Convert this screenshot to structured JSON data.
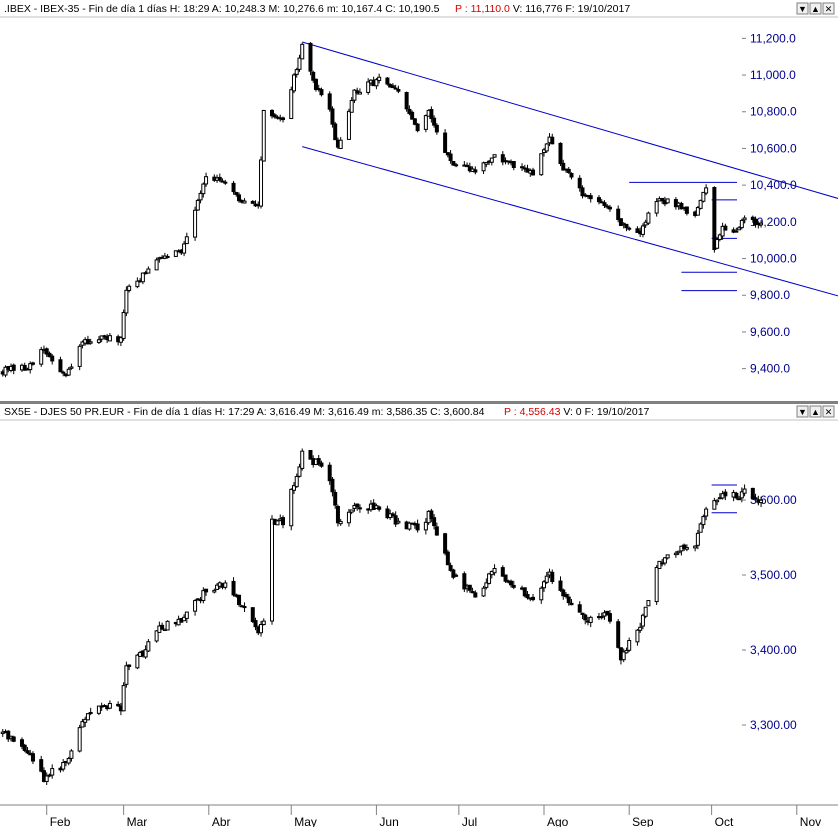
{
  "window_buttons": [
    "▼",
    "▲",
    "✕"
  ],
  "colors": {
    "candle": "#000000",
    "trendline": "#0000cc",
    "axis_label": "#00008b",
    "highlight": "#d00000",
    "background": "#ffffff"
  },
  "x_axis": {
    "labels": [
      "Feb",
      "Mar",
      "Abr",
      "May",
      "Jun",
      "Jul",
      "Ago",
      "Sep",
      "Oct",
      "Nov"
    ],
    "range": [
      "2017-01-15",
      "2017-11-16"
    ]
  },
  "chart_data": [
    {
      "type": "candlestick",
      "header": {
        "name": ".IBEX - IBEX-35 - Fin de día 1 días",
        "high": "H: 18:29",
        "open": "A: 10,248.3",
        "max": "M: 10,276.6",
        "min": "m: 10,167.4",
        "close": "C: 10,190.5",
        "p": "P : 11,110.0",
        "volume": "V: 116,776",
        "date": "F: 19/10/2017"
      },
      "ylim": [
        9240,
        11300
      ],
      "y_ticks": [
        9400,
        9600,
        9800,
        10000,
        10200,
        10400,
        10600,
        10800,
        11000,
        11200
      ],
      "y_tick_labels": [
        "9,400.0",
        "9,600.0",
        "9,800.0",
        "10,000.0",
        "10,200.0",
        "10,400.0",
        "10,600.0",
        "10,800.0",
        "11,000.0",
        "11,200.0"
      ],
      "anchors": [
        [
          "2017-01-16",
          9390
        ],
        [
          "2017-01-24",
          9400
        ],
        [
          "2017-01-31",
          9500
        ],
        [
          "2017-02-08",
          9350
        ],
        [
          "2017-02-14",
          9540
        ],
        [
          "2017-02-20",
          9570
        ],
        [
          "2017-02-28",
          9550
        ],
        [
          "2017-03-02",
          9830
        ],
        [
          "2017-03-09",
          9920
        ],
        [
          "2017-03-14",
          10020
        ],
        [
          "2017-03-22",
          10040
        ],
        [
          "2017-03-31",
          10460
        ],
        [
          "2017-04-07",
          10400
        ],
        [
          "2017-04-13",
          10300
        ],
        [
          "2017-04-19",
          10300
        ],
        [
          "2017-04-21",
          10790
        ],
        [
          "2017-04-28",
          10770
        ],
        [
          "2017-05-05",
          11150
        ],
        [
          "2017-05-10",
          10930
        ],
        [
          "2017-05-15",
          10800
        ],
        [
          "2017-05-18",
          10600
        ],
        [
          "2017-05-24",
          10900
        ],
        [
          "2017-06-02",
          10980
        ],
        [
          "2017-06-09",
          10900
        ],
        [
          "2017-06-16",
          10700
        ],
        [
          "2017-06-20",
          10790
        ],
        [
          "2017-06-29",
          10500
        ],
        [
          "2017-07-07",
          10480
        ],
        [
          "2017-07-14",
          10560
        ],
        [
          "2017-07-21",
          10500
        ],
        [
          "2017-07-28",
          10460
        ],
        [
          "2017-08-03",
          10650
        ],
        [
          "2017-08-08",
          10500
        ],
        [
          "2017-08-16",
          10330
        ],
        [
          "2017-08-24",
          10300
        ],
        [
          "2017-08-29",
          10190
        ],
        [
          "2017-09-05",
          10140
        ],
        [
          "2017-09-11",
          10320
        ],
        [
          "2017-09-18",
          10300
        ],
        [
          "2017-09-25",
          10240
        ],
        [
          "2017-09-29",
          10380
        ],
        [
          "2017-10-02",
          10050
        ],
        [
          "2017-10-05",
          10180
        ],
        [
          "2017-10-10",
          10150
        ],
        [
          "2017-10-13",
          10230
        ],
        [
          "2017-10-19",
          10190
        ]
      ],
      "trendlines": [
        {
          "x1": "2017-05-05",
          "y1": 11180,
          "x2": "2017-11-20",
          "y2": 10310
        },
        {
          "x1": "2017-05-05",
          "y1": 10610,
          "x2": "2017-11-20",
          "y2": 9780
        }
      ],
      "hlines": [
        {
          "x1": "2017-09-01",
          "x2": "2017-11-20",
          "y": 10415
        },
        {
          "x1": "2017-10-01",
          "x2": "2017-11-20",
          "y": 10320
        },
        {
          "x1": "2017-10-01",
          "x2": "2017-11-20",
          "y": 10110
        },
        {
          "x1": "2017-09-20",
          "x2": "2017-11-20",
          "y": 9925
        },
        {
          "x1": "2017-09-20",
          "x2": "2017-11-20",
          "y": 9825
        }
      ]
    },
    {
      "type": "candlestick",
      "header": {
        "name": "SX5E - DJES 50 PR.EUR - Fin de día 1 días",
        "high": "H: 17:29",
        "open": "A: 3,616.49",
        "max": "M: 3,616.49",
        "min": "m: 3,586.35",
        "close": "C: 3,600.84",
        "p": "P : 4,556.43",
        "volume": "V: 0",
        "date": "F: 19/10/2017"
      },
      "ylim": [
        3200,
        3700
      ],
      "y_ticks": [
        3300,
        3400,
        3500,
        3600
      ],
      "y_tick_labels": [
        "3,300.00",
        "3,400.00",
        "3,500.00",
        "3,600.00"
      ],
      "anchors": [
        [
          "2017-01-16",
          3290
        ],
        [
          "2017-01-24",
          3270
        ],
        [
          "2017-01-31",
          3230
        ],
        [
          "2017-02-08",
          3250
        ],
        [
          "2017-02-14",
          3300
        ],
        [
          "2017-02-20",
          3330
        ],
        [
          "2017-02-28",
          3320
        ],
        [
          "2017-03-02",
          3380
        ],
        [
          "2017-03-09",
          3400
        ],
        [
          "2017-03-14",
          3430
        ],
        [
          "2017-03-22",
          3440
        ],
        [
          "2017-03-31",
          3480
        ],
        [
          "2017-04-07",
          3490
        ],
        [
          "2017-04-13",
          3460
        ],
        [
          "2017-04-19",
          3420
        ],
        [
          "2017-04-21",
          3440
        ],
        [
          "2017-04-24",
          3570
        ],
        [
          "2017-04-28",
          3570
        ],
        [
          "2017-05-05",
          3660
        ],
        [
          "2017-05-10",
          3650
        ],
        [
          "2017-05-15",
          3630
        ],
        [
          "2017-05-18",
          3570
        ],
        [
          "2017-05-24",
          3590
        ],
        [
          "2017-06-02",
          3590
        ],
        [
          "2017-06-09",
          3570
        ],
        [
          "2017-06-16",
          3560
        ],
        [
          "2017-06-20",
          3580
        ],
        [
          "2017-06-29",
          3500
        ],
        [
          "2017-07-07",
          3470
        ],
        [
          "2017-07-14",
          3510
        ],
        [
          "2017-07-21",
          3480
        ],
        [
          "2017-07-28",
          3470
        ],
        [
          "2017-08-03",
          3500
        ],
        [
          "2017-08-08",
          3470
        ],
        [
          "2017-08-16",
          3440
        ],
        [
          "2017-08-24",
          3450
        ],
        [
          "2017-08-29",
          3390
        ],
        [
          "2017-09-05",
          3430
        ],
        [
          "2017-09-11",
          3510
        ],
        [
          "2017-09-18",
          3530
        ],
        [
          "2017-09-25",
          3540
        ],
        [
          "2017-09-29",
          3590
        ],
        [
          "2017-10-02",
          3600
        ],
        [
          "2017-10-05",
          3605
        ],
        [
          "2017-10-10",
          3605
        ],
        [
          "2017-10-13",
          3610
        ],
        [
          "2017-10-19",
          3600
        ]
      ],
      "hlines": [
        {
          "x1": "2017-10-01",
          "x2": "2017-11-20",
          "y": 3620
        },
        {
          "x1": "2017-10-01",
          "x2": "2017-11-20",
          "y": 3583
        }
      ]
    }
  ]
}
